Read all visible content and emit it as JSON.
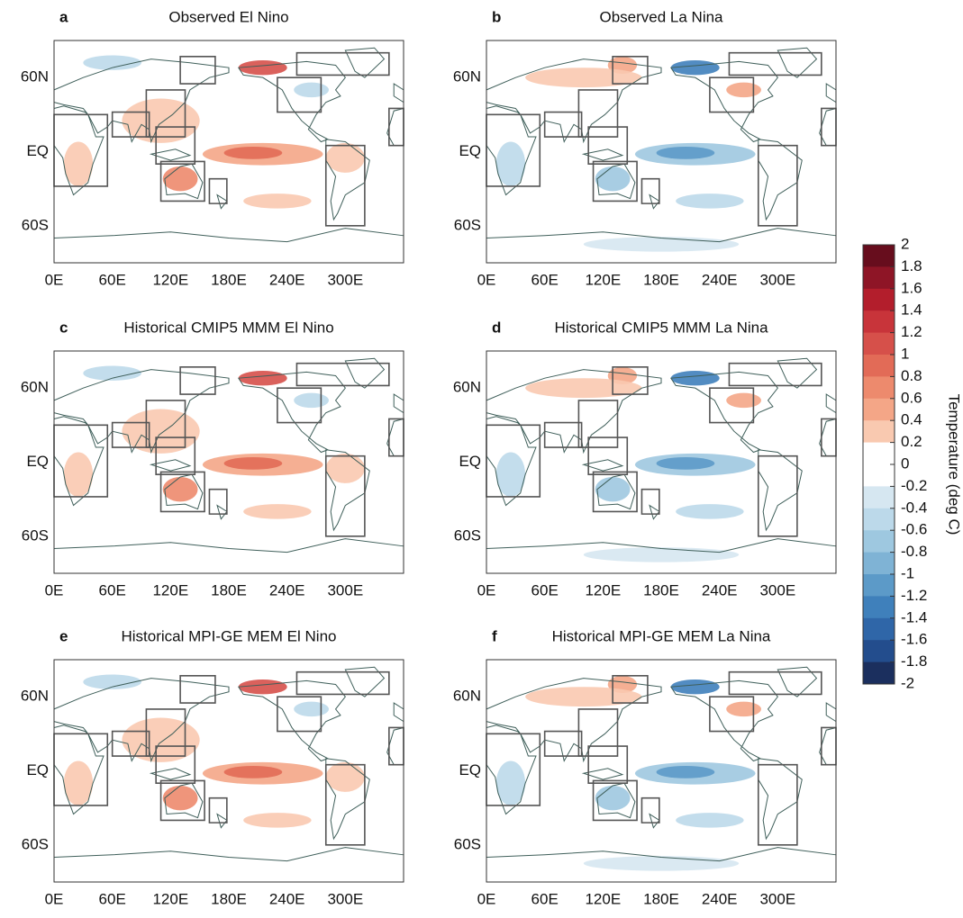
{
  "panels": [
    {
      "letter": "a",
      "title": "Observed El Nino"
    },
    {
      "letter": "b",
      "title": "Observed La Nina"
    },
    {
      "letter": "c",
      "title": "Historical CMIP5 MMM El Nino"
    },
    {
      "letter": "d",
      "title": "Historical CMIP5 MMM La Nina"
    },
    {
      "letter": "e",
      "title": "Historical MPI-GE MEM El Nino"
    },
    {
      "letter": "f",
      "title": "Historical MPI-GE MEM La Nina"
    }
  ],
  "lat_labels": [
    "60N",
    "EQ",
    "60S"
  ],
  "lon_labels": [
    "0E",
    "60E",
    "120E",
    "180E",
    "240E",
    "300E"
  ],
  "colorbar": {
    "label": "Temperature (deg C)",
    "ticks": [
      2,
      1.8,
      1.6,
      1.4,
      1.2,
      1,
      0.8,
      0.6,
      0.4,
      0.2,
      0,
      -0.2,
      -0.4,
      -0.6,
      -0.8,
      -1,
      -1.2,
      -1.4,
      -1.6,
      -1.8,
      -2
    ],
    "colors": [
      "#670d1d",
      "#8e1526",
      "#b31e2c",
      "#c8343a",
      "#d6504a",
      "#e26b57",
      "#ed8a6d",
      "#f4a687",
      "#f9c9b0",
      "#ffffff",
      "#ffffff",
      "#d6e7f1",
      "#bcd9ea",
      "#9ec8e0",
      "#7fb3d5",
      "#5c9ac8",
      "#3f80bb",
      "#2f66a8",
      "#234d8d",
      "#1b2f5e"
    ]
  }
}
